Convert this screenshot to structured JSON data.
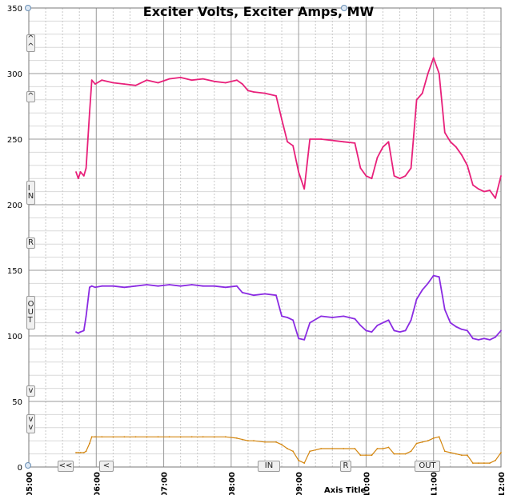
{
  "chart_data": {
    "type": "line",
    "title": "Exciter Volts, Exciter Amps, MW",
    "xlabel": "Axis Title",
    "ylabel": "",
    "x_ticks": [
      "05:00",
      "06:00",
      "07:00",
      "08:00",
      "09:00",
      "10:00",
      "11:00",
      "12:00"
    ],
    "xlim": [
      "05:00",
      "12:00"
    ],
    "ylim": [
      0,
      350
    ],
    "y_ticks": [
      0,
      50,
      100,
      150,
      200,
      250,
      300,
      350
    ],
    "grid": true,
    "legend": "none",
    "series": [
      {
        "color": "#e8207a",
        "x": [
          "05:42",
          "05:44",
          "05:46",
          "05:49",
          "05:51",
          "05:54",
          "05:56",
          "05:59",
          "06:05",
          "06:15",
          "06:25",
          "06:35",
          "06:45",
          "06:55",
          "07:05",
          "07:15",
          "07:25",
          "07:35",
          "07:45",
          "07:55",
          "08:05",
          "08:10",
          "08:15",
          "08:20",
          "08:30",
          "08:40",
          "08:45",
          "08:50",
          "08:55",
          "09:00",
          "09:05",
          "09:10",
          "09:20",
          "09:30",
          "09:40",
          "09:50",
          "09:55",
          "10:00",
          "10:05",
          "10:10",
          "10:15",
          "10:20",
          "10:25",
          "10:30",
          "10:35",
          "10:40",
          "10:45",
          "10:50",
          "10:55",
          "11:00",
          "11:05",
          "11:10",
          "11:15",
          "11:20",
          "11:25",
          "11:30",
          "11:35",
          "11:40",
          "11:45",
          "11:50",
          "11:55",
          "12:00"
        ],
        "y": [
          225,
          220,
          225,
          222,
          228,
          270,
          295,
          292,
          295,
          293,
          292,
          291,
          295,
          293,
          296,
          297,
          295,
          296,
          294,
          293,
          295,
          292,
          287,
          286,
          285,
          283,
          265,
          248,
          245,
          225,
          212,
          250,
          250,
          249,
          248,
          247,
          228,
          222,
          220,
          236,
          244,
          248,
          222,
          220,
          222,
          228,
          280,
          285,
          300,
          312,
          300,
          255,
          248,
          244,
          238,
          230,
          215,
          212,
          210,
          211,
          205,
          222
        ]
      },
      {
        "color": "#8a2be2",
        "x": [
          "05:42",
          "05:44",
          "05:46",
          "05:49",
          "05:51",
          "05:54",
          "05:56",
          "05:59",
          "06:05",
          "06:15",
          "06:25",
          "06:35",
          "06:45",
          "06:55",
          "07:05",
          "07:15",
          "07:25",
          "07:35",
          "07:45",
          "07:55",
          "08:05",
          "08:10",
          "08:15",
          "08:20",
          "08:30",
          "08:40",
          "08:45",
          "08:50",
          "08:55",
          "09:00",
          "09:05",
          "09:10",
          "09:20",
          "09:30",
          "09:40",
          "09:50",
          "09:55",
          "10:00",
          "10:05",
          "10:10",
          "10:15",
          "10:20",
          "10:25",
          "10:30",
          "10:35",
          "10:40",
          "10:45",
          "10:50",
          "10:55",
          "11:00",
          "11:05",
          "11:10",
          "11:15",
          "11:20",
          "11:25",
          "11:30",
          "11:35",
          "11:40",
          "11:45",
          "11:50",
          "11:55",
          "12:00"
        ],
        "y": [
          103,
          102,
          103,
          104,
          115,
          137,
          138,
          137,
          138,
          138,
          137,
          138,
          139,
          138,
          139,
          138,
          139,
          138,
          138,
          137,
          138,
          133,
          132,
          131,
          132,
          131,
          115,
          114,
          112,
          98,
          97,
          110,
          115,
          114,
          115,
          113,
          108,
          104,
          103,
          108,
          110,
          112,
          104,
          103,
          104,
          112,
          128,
          135,
          140,
          146,
          145,
          120,
          110,
          107,
          105,
          104,
          98,
          97,
          98,
          97,
          99,
          104
        ]
      },
      {
        "color": "#d4860e",
        "x": [
          "05:42",
          "05:44",
          "05:46",
          "05:49",
          "05:51",
          "05:54",
          "05:56",
          "05:59",
          "06:05",
          "06:15",
          "06:25",
          "06:35",
          "06:45",
          "06:55",
          "07:05",
          "07:15",
          "07:25",
          "07:35",
          "07:45",
          "07:55",
          "08:05",
          "08:10",
          "08:15",
          "08:20",
          "08:30",
          "08:40",
          "08:45",
          "08:50",
          "08:55",
          "09:00",
          "09:05",
          "09:10",
          "09:20",
          "09:30",
          "09:40",
          "09:50",
          "09:55",
          "10:00",
          "10:05",
          "10:10",
          "10:15",
          "10:20",
          "10:25",
          "10:30",
          "10:35",
          "10:40",
          "10:45",
          "10:50",
          "10:55",
          "11:00",
          "11:05",
          "11:10",
          "11:15",
          "11:20",
          "11:25",
          "11:30",
          "11:35",
          "11:40",
          "11:45",
          "11:50",
          "11:55",
          "12:00"
        ],
        "y": [
          11,
          11,
          11,
          11,
          12,
          18,
          23,
          23,
          23,
          23,
          23,
          23,
          23,
          23,
          23,
          23,
          23,
          23,
          23,
          23,
          22,
          21,
          20,
          20,
          19,
          19,
          17,
          14,
          12,
          5,
          3,
          12,
          14,
          14,
          14,
          14,
          9,
          9,
          9,
          14,
          14,
          15,
          10,
          10,
          10,
          12,
          18,
          19,
          20,
          22,
          23,
          12,
          11,
          10,
          9,
          9,
          3,
          3,
          3,
          3,
          5,
          11
        ]
      }
    ]
  },
  "controls": {
    "left": [
      "^\n^",
      "^",
      "I\nN",
      "R",
      "O\nU\nT",
      "v",
      "v\nv"
    ],
    "bottom": [
      "<<",
      "<",
      "IN",
      "R",
      "OUT"
    ]
  }
}
